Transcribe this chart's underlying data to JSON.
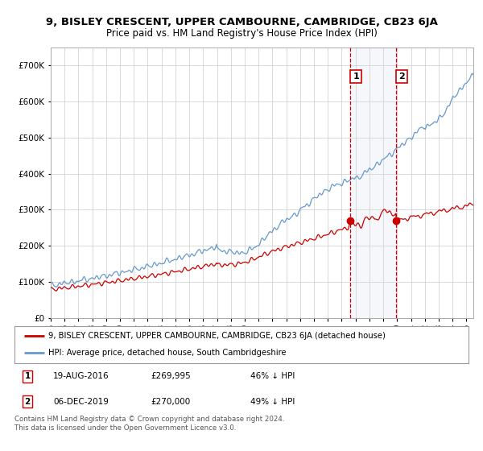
{
  "title": "9, BISLEY CRESCENT, UPPER CAMBOURNE, CAMBRIDGE, CB23 6JA",
  "subtitle": "Price paid vs. HM Land Registry's House Price Index (HPI)",
  "red_label": "9, BISLEY CRESCENT, UPPER CAMBOURNE, CAMBRIDGE, CB23 6JA (detached house)",
  "blue_label": "HPI: Average price, detached house, South Cambridgeshire",
  "transaction1_date": "19-AUG-2016",
  "transaction1_price": 269995,
  "transaction1_hpi": "46% ↓ HPI",
  "transaction1_year": 2016.63,
  "transaction2_date": "06-DEC-2019",
  "transaction2_price": 270000,
  "transaction2_hpi": "49% ↓ HPI",
  "transaction2_year": 2019.93,
  "footer": "Contains HM Land Registry data © Crown copyright and database right 2024.\nThis data is licensed under the Open Government Licence v3.0.",
  "ylim": [
    0,
    750000
  ],
  "xlim_start": 1995.0,
  "xlim_end": 2025.5,
  "background_color": "#ffffff",
  "plot_bg_color": "#ffffff",
  "grid_color": "#cccccc",
  "red_color": "#cc0000",
  "blue_color": "#6699cc",
  "shade_color": "#d0d8e8"
}
